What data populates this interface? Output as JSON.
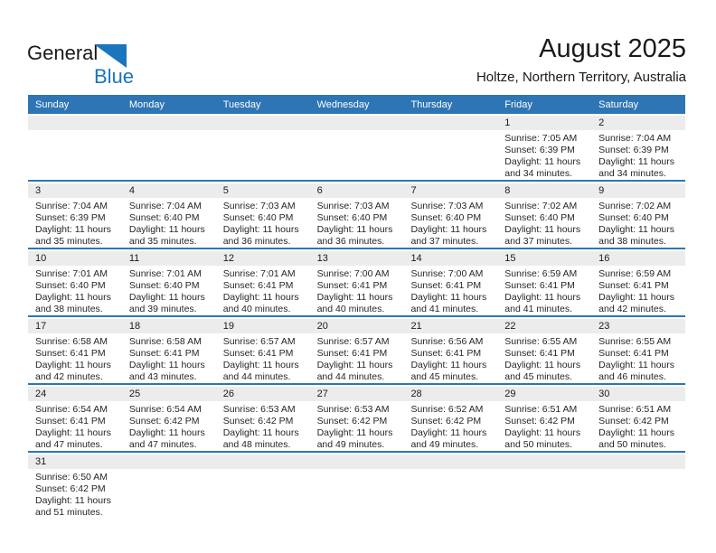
{
  "logo": {
    "word_general": "General",
    "word_blue": "Blue"
  },
  "title": "August 2025",
  "subtitle": "Holtze, Northern Territory, Australia",
  "colors": {
    "header_blue": "#2e75b6",
    "separator_blue": "#2e75b6",
    "day_band_gray": "#ececec",
    "logo_blue": "#1b75bc",
    "text": "#1a1a1a"
  },
  "weekdays": [
    "Sunday",
    "Monday",
    "Tuesday",
    "Wednesday",
    "Thursday",
    "Friday",
    "Saturday"
  ],
  "weeks": [
    [
      null,
      null,
      null,
      null,
      null,
      {
        "date": "1",
        "sunrise": "Sunrise: 7:05 AM",
        "sunset": "Sunset: 6:39 PM",
        "daylight": "Daylight: 11 hours and 34 minutes."
      },
      {
        "date": "2",
        "sunrise": "Sunrise: 7:04 AM",
        "sunset": "Sunset: 6:39 PM",
        "daylight": "Daylight: 11 hours and 34 minutes."
      }
    ],
    [
      {
        "date": "3",
        "sunrise": "Sunrise: 7:04 AM",
        "sunset": "Sunset: 6:39 PM",
        "daylight": "Daylight: 11 hours and 35 minutes."
      },
      {
        "date": "4",
        "sunrise": "Sunrise: 7:04 AM",
        "sunset": "Sunset: 6:40 PM",
        "daylight": "Daylight: 11 hours and 35 minutes."
      },
      {
        "date": "5",
        "sunrise": "Sunrise: 7:03 AM",
        "sunset": "Sunset: 6:40 PM",
        "daylight": "Daylight: 11 hours and 36 minutes."
      },
      {
        "date": "6",
        "sunrise": "Sunrise: 7:03 AM",
        "sunset": "Sunset: 6:40 PM",
        "daylight": "Daylight: 11 hours and 36 minutes."
      },
      {
        "date": "7",
        "sunrise": "Sunrise: 7:03 AM",
        "sunset": "Sunset: 6:40 PM",
        "daylight": "Daylight: 11 hours and 37 minutes."
      },
      {
        "date": "8",
        "sunrise": "Sunrise: 7:02 AM",
        "sunset": "Sunset: 6:40 PM",
        "daylight": "Daylight: 11 hours and 37 minutes."
      },
      {
        "date": "9",
        "sunrise": "Sunrise: 7:02 AM",
        "sunset": "Sunset: 6:40 PM",
        "daylight": "Daylight: 11 hours and 38 minutes."
      }
    ],
    [
      {
        "date": "10",
        "sunrise": "Sunrise: 7:01 AM",
        "sunset": "Sunset: 6:40 PM",
        "daylight": "Daylight: 11 hours and 38 minutes."
      },
      {
        "date": "11",
        "sunrise": "Sunrise: 7:01 AM",
        "sunset": "Sunset: 6:40 PM",
        "daylight": "Daylight: 11 hours and 39 minutes."
      },
      {
        "date": "12",
        "sunrise": "Sunrise: 7:01 AM",
        "sunset": "Sunset: 6:41 PM",
        "daylight": "Daylight: 11 hours and 40 minutes."
      },
      {
        "date": "13",
        "sunrise": "Sunrise: 7:00 AM",
        "sunset": "Sunset: 6:41 PM",
        "daylight": "Daylight: 11 hours and 40 minutes."
      },
      {
        "date": "14",
        "sunrise": "Sunrise: 7:00 AM",
        "sunset": "Sunset: 6:41 PM",
        "daylight": "Daylight: 11 hours and 41 minutes."
      },
      {
        "date": "15",
        "sunrise": "Sunrise: 6:59 AM",
        "sunset": "Sunset: 6:41 PM",
        "daylight": "Daylight: 11 hours and 41 minutes."
      },
      {
        "date": "16",
        "sunrise": "Sunrise: 6:59 AM",
        "sunset": "Sunset: 6:41 PM",
        "daylight": "Daylight: 11 hours and 42 minutes."
      }
    ],
    [
      {
        "date": "17",
        "sunrise": "Sunrise: 6:58 AM",
        "sunset": "Sunset: 6:41 PM",
        "daylight": "Daylight: 11 hours and 42 minutes."
      },
      {
        "date": "18",
        "sunrise": "Sunrise: 6:58 AM",
        "sunset": "Sunset: 6:41 PM",
        "daylight": "Daylight: 11 hours and 43 minutes."
      },
      {
        "date": "19",
        "sunrise": "Sunrise: 6:57 AM",
        "sunset": "Sunset: 6:41 PM",
        "daylight": "Daylight: 11 hours and 44 minutes."
      },
      {
        "date": "20",
        "sunrise": "Sunrise: 6:57 AM",
        "sunset": "Sunset: 6:41 PM",
        "daylight": "Daylight: 11 hours and 44 minutes."
      },
      {
        "date": "21",
        "sunrise": "Sunrise: 6:56 AM",
        "sunset": "Sunset: 6:41 PM",
        "daylight": "Daylight: 11 hours and 45 minutes."
      },
      {
        "date": "22",
        "sunrise": "Sunrise: 6:55 AM",
        "sunset": "Sunset: 6:41 PM",
        "daylight": "Daylight: 11 hours and 45 minutes."
      },
      {
        "date": "23",
        "sunrise": "Sunrise: 6:55 AM",
        "sunset": "Sunset: 6:41 PM",
        "daylight": "Daylight: 11 hours and 46 minutes."
      }
    ],
    [
      {
        "date": "24",
        "sunrise": "Sunrise: 6:54 AM",
        "sunset": "Sunset: 6:41 PM",
        "daylight": "Daylight: 11 hours and 47 minutes."
      },
      {
        "date": "25",
        "sunrise": "Sunrise: 6:54 AM",
        "sunset": "Sunset: 6:42 PM",
        "daylight": "Daylight: 11 hours and 47 minutes."
      },
      {
        "date": "26",
        "sunrise": "Sunrise: 6:53 AM",
        "sunset": "Sunset: 6:42 PM",
        "daylight": "Daylight: 11 hours and 48 minutes."
      },
      {
        "date": "27",
        "sunrise": "Sunrise: 6:53 AM",
        "sunset": "Sunset: 6:42 PM",
        "daylight": "Daylight: 11 hours and 49 minutes."
      },
      {
        "date": "28",
        "sunrise": "Sunrise: 6:52 AM",
        "sunset": "Sunset: 6:42 PM",
        "daylight": "Daylight: 11 hours and 49 minutes."
      },
      {
        "date": "29",
        "sunrise": "Sunrise: 6:51 AM",
        "sunset": "Sunset: 6:42 PM",
        "daylight": "Daylight: 11 hours and 50 minutes."
      },
      {
        "date": "30",
        "sunrise": "Sunrise: 6:51 AM",
        "sunset": "Sunset: 6:42 PM",
        "daylight": "Daylight: 11 hours and 50 minutes."
      }
    ],
    [
      {
        "date": "31",
        "sunrise": "Sunrise: 6:50 AM",
        "sunset": "Sunset: 6:42 PM",
        "daylight": "Daylight: 11 hours and 51 minutes."
      },
      null,
      null,
      null,
      null,
      null,
      null
    ]
  ]
}
